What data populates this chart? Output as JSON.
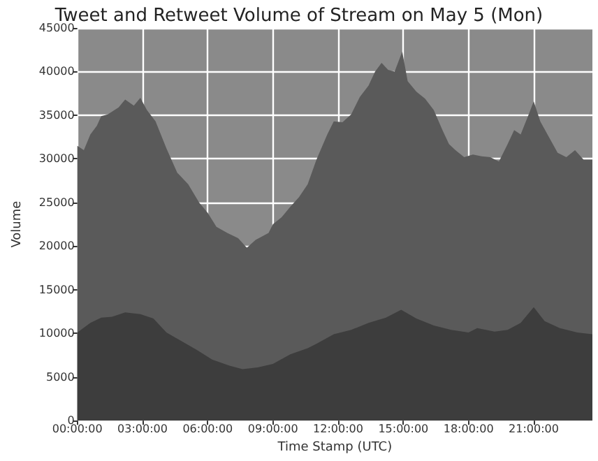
{
  "chart_data": {
    "type": "area",
    "title": "Tweet and Retweet Volume of Stream on May 5 (Mon)",
    "xlabel": "Time Stamp (UTC)",
    "ylabel": "Volume",
    "xlim": [
      0,
      23.7
    ],
    "xticks": [
      {
        "value": 0,
        "label": "00:00:00"
      },
      {
        "value": 3,
        "label": "03:00:00"
      },
      {
        "value": 6,
        "label": "06:00:00"
      },
      {
        "value": 9,
        "label": "09:00:00"
      },
      {
        "value": 12,
        "label": "12:00:00"
      },
      {
        "value": 15,
        "label": "15:00:00"
      },
      {
        "value": 18,
        "label": "18:00:00"
      },
      {
        "value": 21,
        "label": "21:00:00"
      }
    ],
    "ylim": [
      0,
      45000
    ],
    "yticks": [
      0,
      5000,
      10000,
      15000,
      20000,
      25000,
      30000,
      35000,
      40000,
      45000
    ],
    "grid": true,
    "series": [
      {
        "color": "#5a5a5a",
        "x": [
          0,
          0.3,
          0.6,
          0.9,
          1.1,
          1.4,
          1.9,
          2.2,
          2.6,
          2.9,
          3.2,
          3.6,
          4.1,
          4.6,
          5.1,
          5.6,
          6.0,
          6.4,
          6.9,
          7.4,
          7.8,
          8.2,
          8.8,
          9.0,
          9.4,
          9.8,
          10.2,
          10.6,
          11.0,
          11.5,
          11.8,
          12.2,
          12.6,
          13.0,
          13.4,
          13.7,
          14.0,
          14.3,
          14.6,
          14.95,
          15.2,
          15.6,
          16.0,
          16.4,
          16.8,
          17.1,
          17.4,
          17.8,
          18.2,
          18.6,
          19.0,
          19.4,
          19.8,
          20.1,
          20.4,
          20.8,
          21.0,
          21.3,
          21.7,
          22.1,
          22.5,
          22.9,
          23.3,
          23.7
        ],
        "values": [
          31500,
          31000,
          32800,
          33800,
          34900,
          35100,
          35900,
          36800,
          36100,
          37000,
          35600,
          34300,
          31200,
          28400,
          27100,
          25000,
          23800,
          22200,
          21500,
          20900,
          19800,
          20700,
          21500,
          22500,
          23300,
          24500,
          25600,
          27100,
          29900,
          32800,
          34300,
          34200,
          35100,
          37100,
          38400,
          40000,
          41000,
          40200,
          40000,
          42300,
          38900,
          37700,
          36900,
          35600,
          33300,
          31700,
          31000,
          30200,
          30500,
          30300,
          30200,
          29700,
          31700,
          33300,
          32800,
          35300,
          36600,
          34300,
          32500,
          30700,
          30200,
          31000,
          29900,
          29900
        ]
      },
      {
        "color": "#3d3d3d",
        "x": [
          0,
          0.6,
          1.1,
          1.6,
          2.2,
          2.9,
          3.5,
          4.1,
          4.8,
          5.5,
          6.2,
          7.0,
          7.6,
          8.3,
          9.0,
          9.8,
          10.6,
          11.0,
          11.8,
          12.6,
          13.4,
          14.2,
          14.9,
          15.6,
          16.4,
          17.2,
          18.0,
          18.4,
          19.2,
          19.8,
          20.4,
          21.0,
          21.5,
          22.2,
          23.0,
          23.7
        ],
        "values": [
          10100,
          11200,
          11800,
          11900,
          12400,
          12200,
          11700,
          10100,
          9100,
          8100,
          7000,
          6300,
          5900,
          6100,
          6500,
          7600,
          8300,
          8800,
          9900,
          10400,
          11200,
          11800,
          12700,
          11700,
          10900,
          10400,
          10100,
          10600,
          10200,
          10400,
          11200,
          13000,
          11400,
          10600,
          10100,
          9900
        ]
      }
    ]
  }
}
